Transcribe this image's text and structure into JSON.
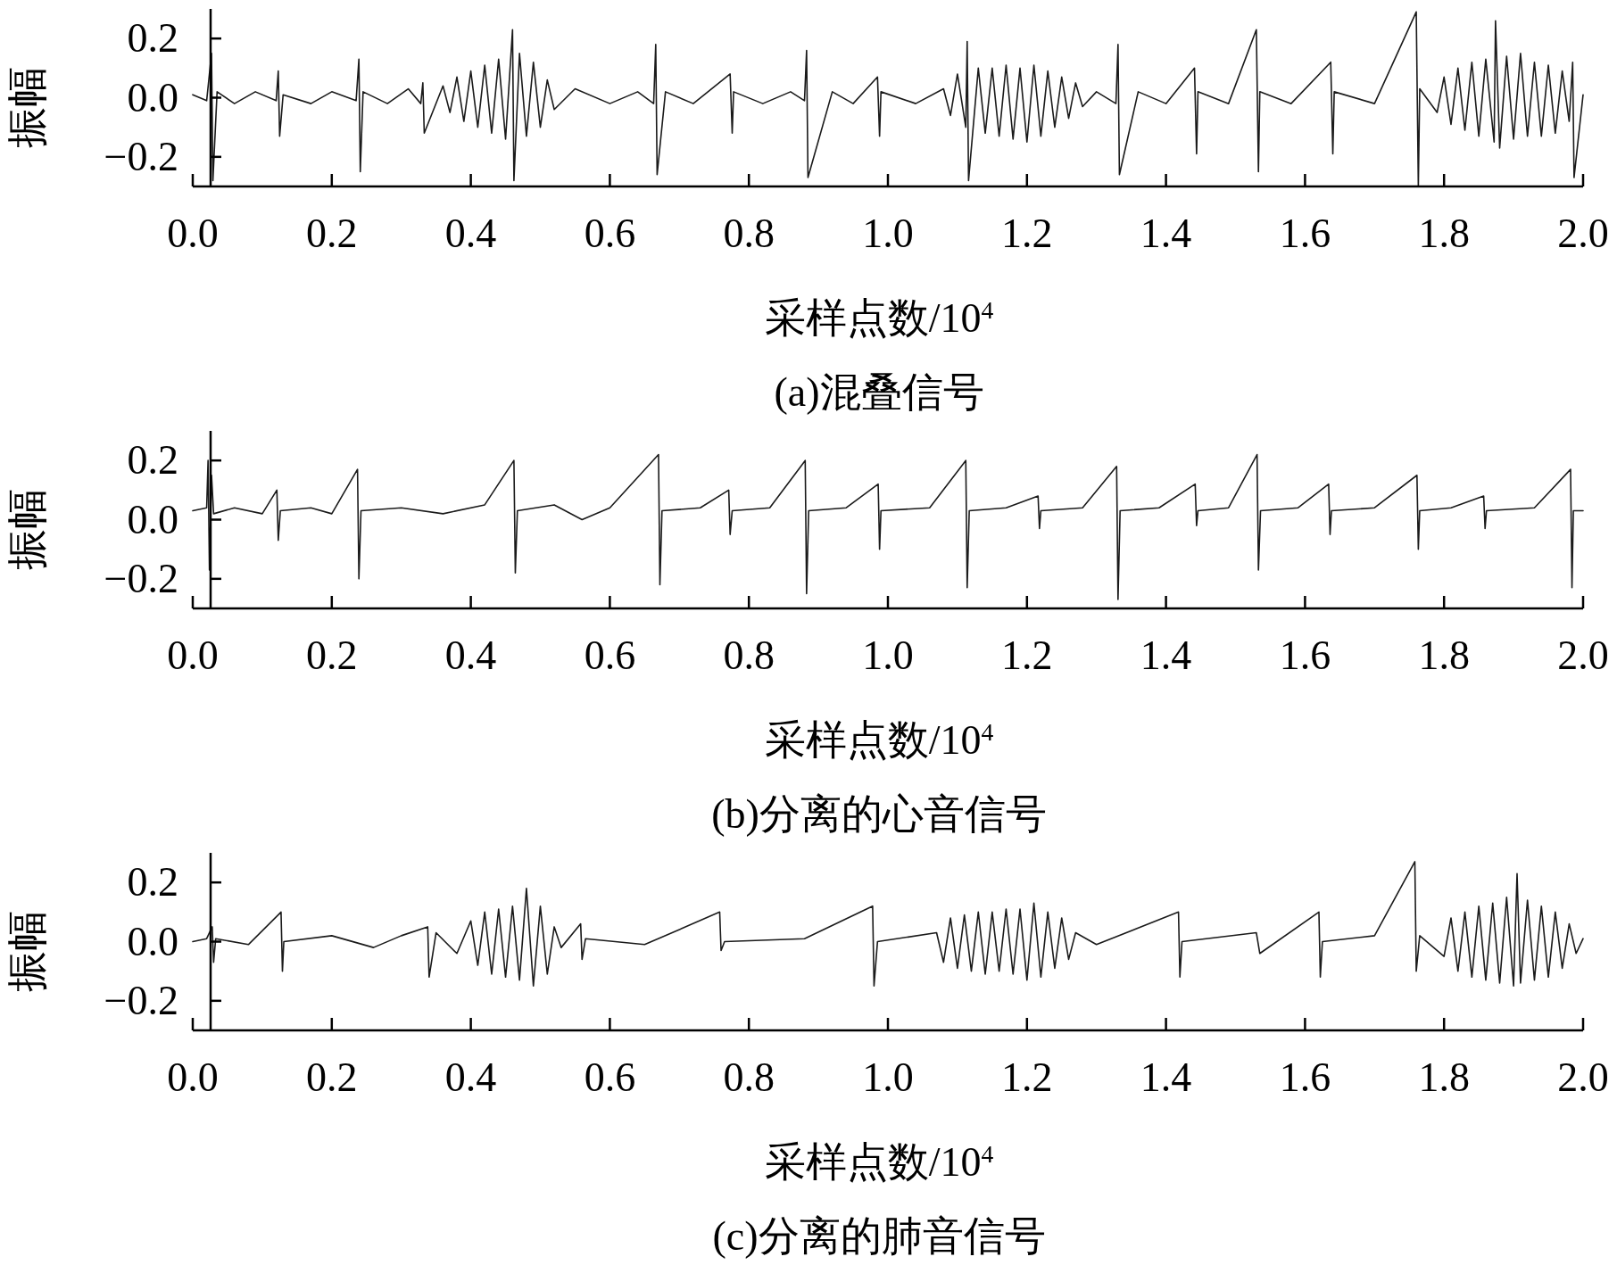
{
  "chart_data": [
    {
      "type": "line",
      "title": "(a)混叠信号",
      "xlabel": "采样点数/10$^{4}$",
      "ylabel": "振幅",
      "xlim": [
        0,
        2
      ],
      "ylim": [
        -0.3,
        0.3
      ],
      "xticks": [
        {
          "value": 0,
          "label": "0.0"
        },
        0.2,
        0.4,
        0.6,
        0.8,
        {
          "value": 1,
          "label": "1.0"
        },
        1.2,
        1.4,
        1.6,
        1.8,
        {
          "value": 2,
          "label": "2.0"
        }
      ],
      "yticks": [
        {
          "value": 0.2,
          "label": "0.2"
        },
        {
          "value": 0,
          "label": "0.0"
        },
        {
          "value": -0.2,
          "label": "−0.2"
        }
      ],
      "series": [
        {
          "color": "#1a1a1a",
          "x": [
            0,
            0.02,
            0.027,
            0.029,
            0.035,
            0.06,
            0.09,
            0.12,
            0.123,
            0.125,
            0.13,
            0.17,
            0.2,
            0.235,
            0.239,
            0.241,
            0.245,
            0.28,
            0.31,
            0.328,
            0.331,
            0.333,
            0.36,
            0.37,
            0.38,
            0.39,
            0.4,
            0.41,
            0.42,
            0.43,
            0.44,
            0.45,
            0.46,
            0.462,
            0.47,
            0.48,
            0.49,
            0.5,
            0.51,
            0.52,
            0.55,
            0.6,
            0.64,
            0.663,
            0.666,
            0.668,
            0.68,
            0.72,
            0.773,
            0.776,
            0.778,
            0.82,
            0.86,
            0.88,
            0.883,
            0.885,
            0.92,
            0.95,
            0.985,
            0.988,
            0.99,
            1.04,
            1.08,
            1.09,
            1.1,
            1.112,
            1.114,
            1.116,
            1.13,
            1.14,
            1.15,
            1.16,
            1.17,
            1.18,
            1.19,
            1.2,
            1.21,
            1.22,
            1.23,
            1.24,
            1.25,
            1.26,
            1.27,
            1.28,
            1.3,
            1.328,
            1.331,
            1.333,
            1.36,
            1.4,
            1.441,
            1.444,
            1.446,
            1.49,
            1.53,
            1.533,
            1.535,
            1.58,
            1.637,
            1.64,
            1.642,
            1.7,
            1.76,
            1.763,
            1.765,
            1.79,
            1.8,
            1.81,
            1.82,
            1.83,
            1.84,
            1.85,
            1.86,
            1.872,
            1.874,
            1.88,
            1.89,
            1.9,
            1.91,
            1.92,
            1.93,
            1.94,
            1.95,
            1.96,
            1.97,
            1.98,
            1.985,
            1.987,
            2.0
          ],
          "values": [
            0.01,
            -0.01,
            0.15,
            -0.28,
            0.02,
            -0.02,
            0.02,
            -0.01,
            0.09,
            -0.13,
            0.01,
            -0.02,
            0.02,
            -0.01,
            0.13,
            -0.25,
            0.02,
            -0.02,
            0.03,
            -0.02,
            0.05,
            -0.12,
            0.04,
            -0.05,
            0.07,
            -0.08,
            0.09,
            -0.1,
            0.11,
            -0.12,
            0.13,
            -0.14,
            0.23,
            -0.28,
            0.15,
            -0.13,
            0.12,
            -0.1,
            0.06,
            -0.04,
            0.03,
            -0.02,
            0.02,
            -0.02,
            0.18,
            -0.26,
            0.02,
            -0.02,
            0.08,
            -0.12,
            0.02,
            -0.02,
            0.02,
            -0.01,
            0.16,
            -0.27,
            0.02,
            -0.02,
            0.07,
            -0.13,
            0.02,
            -0.02,
            0.03,
            -0.06,
            0.08,
            -0.1,
            0.19,
            -0.28,
            0.1,
            -0.12,
            0.1,
            -0.13,
            0.11,
            -0.14,
            0.1,
            -0.15,
            0.11,
            -0.13,
            0.09,
            -0.1,
            0.07,
            -0.07,
            0.05,
            -0.03,
            0.02,
            -0.02,
            0.18,
            -0.26,
            0.02,
            -0.02,
            0.1,
            -0.19,
            0.02,
            -0.02,
            0.23,
            -0.25,
            0.02,
            -0.02,
            0.12,
            -0.19,
            0.02,
            -0.02,
            0.29,
            -0.3,
            0.03,
            -0.05,
            0.07,
            -0.09,
            0.1,
            -0.11,
            0.12,
            -0.13,
            0.13,
            -0.15,
            0.26,
            -0.17,
            0.14,
            -0.14,
            0.15,
            -0.13,
            0.12,
            -0.13,
            0.11,
            -0.12,
            0.09,
            -0.08,
            0.12,
            -0.27,
            0.01
          ]
        }
      ]
    },
    {
      "type": "line",
      "title": "(b)分离的心音信号",
      "xlabel": "采样点数/10$^{4}$",
      "ylabel": "振幅",
      "xlim": [
        0,
        2
      ],
      "ylim": [
        -0.3,
        0.3
      ],
      "xticks": [
        {
          "value": 0,
          "label": "0.0"
        },
        0.2,
        0.4,
        0.6,
        0.8,
        {
          "value": 1,
          "label": "1.0"
        },
        1.2,
        1.4,
        1.6,
        1.8,
        {
          "value": 2,
          "label": "2.0"
        }
      ],
      "yticks": [
        {
          "value": 0.2,
          "label": "0.2"
        },
        {
          "value": 0,
          "label": "0.0"
        },
        {
          "value": -0.2,
          "label": "−0.2"
        }
      ],
      "series": [
        {
          "color": "#1a1a1a",
          "x": [
            0,
            0.02,
            0.022,
            0.024,
            0.027,
            0.03,
            0.06,
            0.1,
            0.121,
            0.123,
            0.126,
            0.17,
            0.2,
            0.237,
            0.239,
            0.242,
            0.3,
            0.36,
            0.42,
            0.462,
            0.464,
            0.467,
            0.52,
            0.56,
            0.6,
            0.67,
            0.672,
            0.675,
            0.73,
            0.771,
            0.773,
            0.776,
            0.83,
            0.881,
            0.883,
            0.886,
            0.94,
            0.986,
            0.988,
            0.99,
            1.06,
            1.112,
            1.114,
            1.117,
            1.17,
            1.216,
            1.218,
            1.22,
            1.28,
            1.329,
            1.331,
            1.334,
            1.39,
            1.442,
            1.444,
            1.446,
            1.49,
            1.531,
            1.533,
            1.536,
            1.59,
            1.634,
            1.636,
            1.638,
            1.7,
            1.761,
            1.763,
            1.765,
            1.81,
            1.857,
            1.859,
            1.861,
            1.93,
            1.982,
            1.984,
            1.986,
            2.0
          ],
          "values": [
            0.03,
            0.04,
            0.2,
            -0.17,
            0.15,
            0.02,
            0.04,
            0.02,
            0.1,
            -0.07,
            0.03,
            0.04,
            0.02,
            0.17,
            -0.2,
            0.03,
            0.04,
            0.02,
            0.05,
            0.2,
            -0.18,
            0.03,
            0.05,
            0.0,
            0.04,
            0.22,
            -0.22,
            0.03,
            0.04,
            0.1,
            -0.05,
            0.03,
            0.04,
            0.2,
            -0.25,
            0.03,
            0.04,
            0.12,
            -0.1,
            0.03,
            0.04,
            0.2,
            -0.23,
            0.03,
            0.04,
            0.08,
            -0.03,
            0.03,
            0.04,
            0.18,
            -0.27,
            0.03,
            0.04,
            0.12,
            -0.02,
            0.03,
            0.04,
            0.22,
            -0.17,
            0.03,
            0.04,
            0.12,
            -0.05,
            0.03,
            0.04,
            0.15,
            -0.1,
            0.03,
            0.04,
            0.08,
            -0.03,
            0.03,
            0.04,
            0.17,
            -0.23,
            0.03,
            0.03
          ]
        }
      ]
    },
    {
      "type": "line",
      "title": "(c)分离的肺音信号",
      "xlabel": "采样点数/10$^{4}$",
      "ylabel": "振幅",
      "xlim": [
        0,
        2
      ],
      "ylim": [
        -0.3,
        0.3
      ],
      "xticks": [
        {
          "value": 0,
          "label": "0.0"
        },
        0.2,
        0.4,
        0.6,
        0.8,
        {
          "value": 1,
          "label": "1.0"
        },
        1.2,
        1.4,
        1.6,
        1.8,
        {
          "value": 2,
          "label": "2.0"
        }
      ],
      "yticks": [
        {
          "value": 0.2,
          "label": "0.2"
        },
        {
          "value": 0,
          "label": "0.0"
        },
        {
          "value": -0.2,
          "label": "−0.2"
        }
      ],
      "series": [
        {
          "color": "#1a1a1a",
          "x": [
            0,
            0.02,
            0.028,
            0.03,
            0.033,
            0.08,
            0.127,
            0.129,
            0.131,
            0.2,
            0.26,
            0.3,
            0.338,
            0.34,
            0.35,
            0.38,
            0.4,
            0.41,
            0.42,
            0.43,
            0.44,
            0.45,
            0.46,
            0.47,
            0.48,
            0.49,
            0.5,
            0.51,
            0.52,
            0.53,
            0.558,
            0.56,
            0.565,
            0.65,
            0.758,
            0.76,
            0.765,
            0.88,
            0.978,
            0.98,
            0.985,
            1.07,
            1.08,
            1.09,
            1.1,
            1.11,
            1.12,
            1.13,
            1.14,
            1.15,
            1.16,
            1.17,
            1.18,
            1.19,
            1.2,
            1.21,
            1.22,
            1.23,
            1.24,
            1.25,
            1.26,
            1.27,
            1.3,
            1.418,
            1.42,
            1.423,
            1.53,
            1.535,
            1.62,
            1.622,
            1.625,
            1.7,
            1.758,
            1.76,
            1.765,
            1.8,
            1.81,
            1.82,
            1.83,
            1.84,
            1.85,
            1.86,
            1.87,
            1.88,
            1.89,
            1.9,
            1.905,
            1.91,
            1.92,
            1.93,
            1.94,
            1.95,
            1.96,
            1.97,
            1.98,
            1.99,
            2.0
          ],
          "values": [
            0.0,
            0.01,
            0.05,
            -0.07,
            0.01,
            -0.01,
            0.1,
            -0.1,
            0.0,
            0.02,
            -0.02,
            0.02,
            0.05,
            -0.12,
            0.03,
            -0.04,
            0.07,
            -0.08,
            0.1,
            -0.11,
            0.11,
            -0.12,
            0.12,
            -0.13,
            0.18,
            -0.15,
            0.12,
            -0.11,
            0.05,
            -0.02,
            0.06,
            -0.06,
            0.01,
            -0.01,
            0.1,
            -0.03,
            0.0,
            0.01,
            0.12,
            -0.15,
            0.0,
            0.03,
            -0.07,
            0.08,
            -0.09,
            0.09,
            -0.1,
            0.1,
            -0.11,
            0.1,
            -0.1,
            0.11,
            -0.11,
            0.11,
            -0.13,
            0.13,
            -0.12,
            0.1,
            -0.09,
            0.08,
            -0.06,
            0.03,
            -0.01,
            0.1,
            -0.12,
            0.0,
            0.03,
            -0.04,
            0.1,
            -0.12,
            0.0,
            0.02,
            0.27,
            -0.1,
            0.02,
            -0.05,
            0.08,
            -0.1,
            0.1,
            -0.12,
            0.12,
            -0.13,
            0.13,
            -0.14,
            0.15,
            -0.15,
            0.23,
            -0.14,
            0.14,
            -0.13,
            0.12,
            -0.12,
            0.1,
            -0.09,
            0.06,
            -0.04,
            0.01
          ]
        }
      ]
    }
  ]
}
